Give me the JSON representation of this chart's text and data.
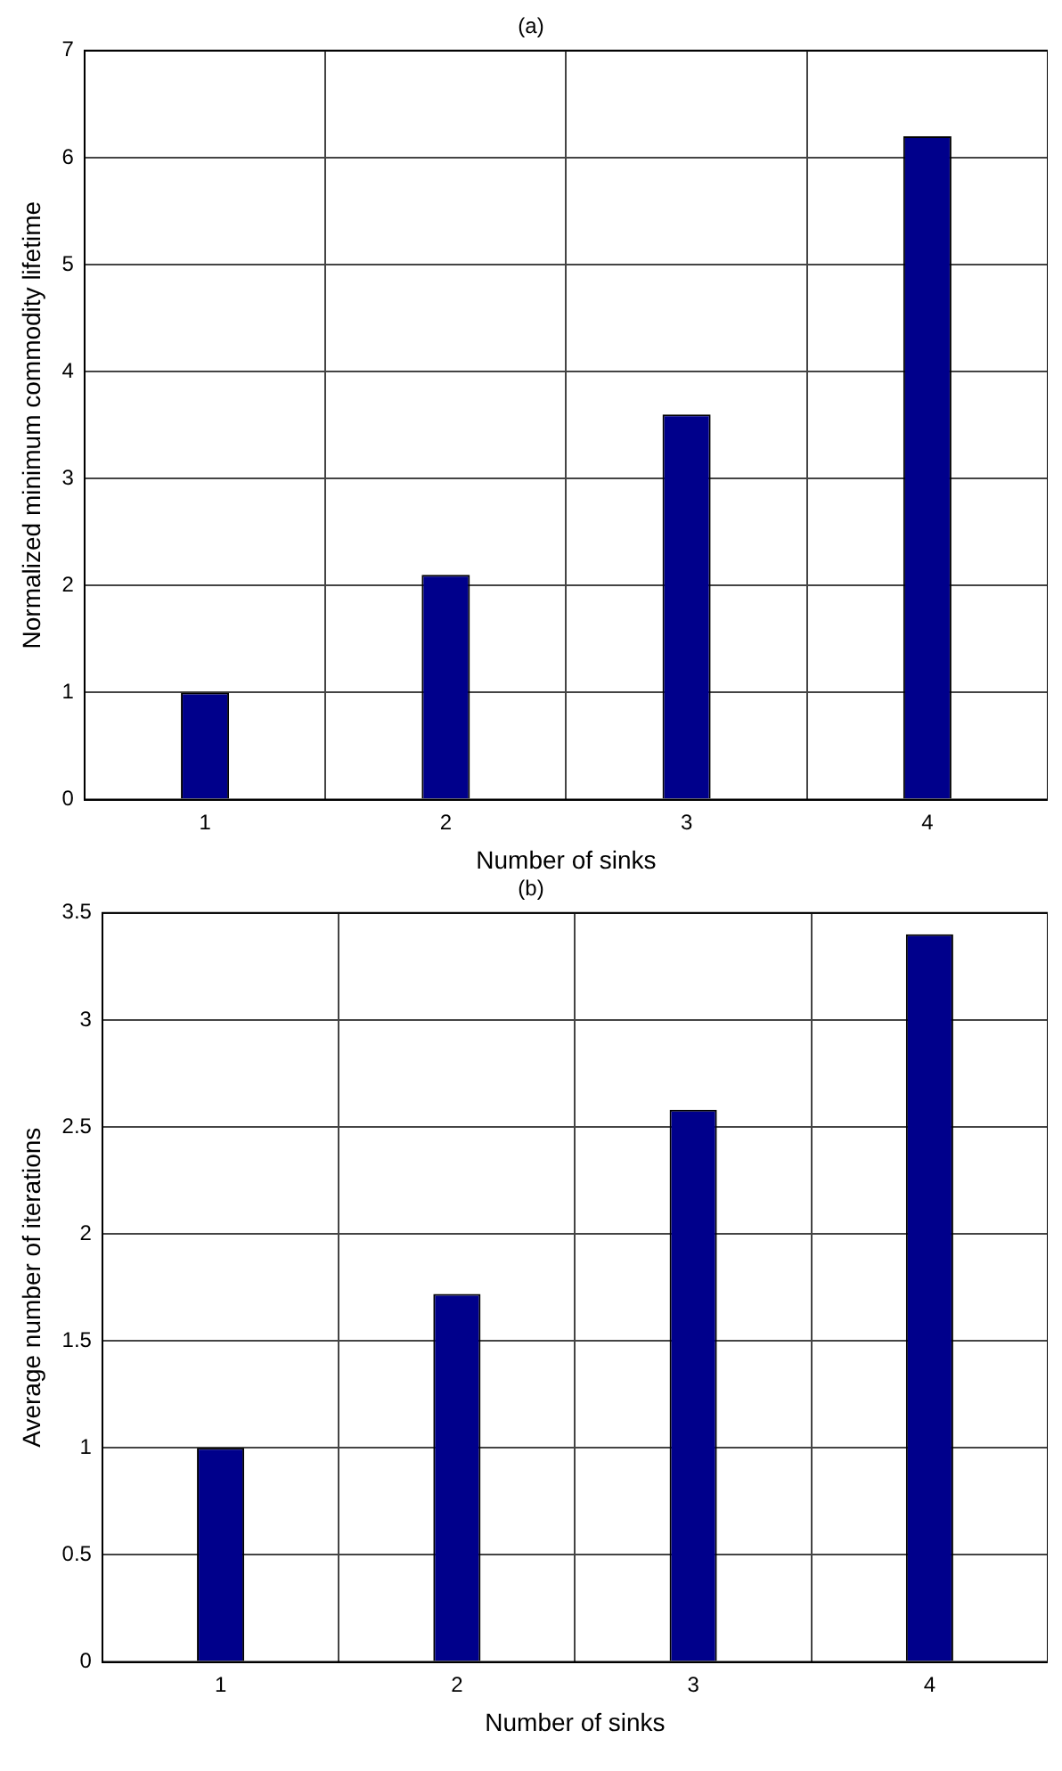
{
  "chart_data": [
    {
      "type": "bar",
      "title": "(a)",
      "xlabel": "Number of sinks",
      "ylabel": "Normalized minimum commodity lifetime",
      "categories": [
        "1",
        "2",
        "3",
        "4"
      ],
      "values": [
        1,
        2.1,
        3.6,
        6.2
      ],
      "color": "#00008b",
      "ylim": [
        0,
        7
      ],
      "yticks": [
        0,
        1,
        2,
        3,
        4,
        5,
        6,
        7
      ],
      "grid": true
    },
    {
      "type": "bar",
      "title": "(b)",
      "xlabel": "Number of sinks",
      "ylabel": "Average number of iterations",
      "categories": [
        "1",
        "2",
        "3",
        "4"
      ],
      "values": [
        1,
        1.72,
        2.58,
        3.4
      ],
      "color": "#00008b",
      "ylim": [
        0,
        3.5
      ],
      "yticks": [
        0,
        0.5,
        1,
        1.5,
        2,
        2.5,
        3,
        3.5
      ],
      "grid": true
    }
  ]
}
